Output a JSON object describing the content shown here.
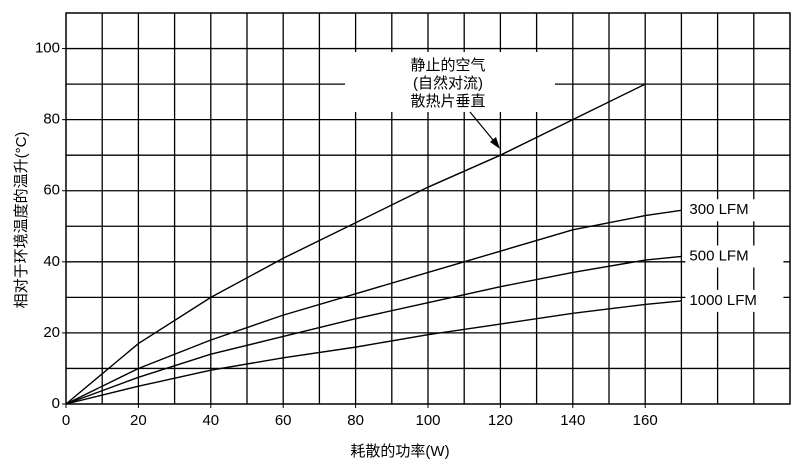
{
  "chart_data": {
    "type": "line",
    "x_label": "耗散的功率(W)",
    "y_label": "相对于环境温度的温升(°C)",
    "x": [
      0,
      20,
      40,
      60,
      80,
      100,
      120,
      140,
      160,
      170
    ],
    "series": [
      {
        "color": "#000000",
        "values": [
          0,
          17,
          30,
          41,
          51,
          61,
          70,
          80,
          90,
          null
        ]
      },
      {
        "name": "300 LFM",
        "color": "#000000",
        "values": [
          0,
          10,
          18,
          25,
          31,
          37,
          43,
          49,
          53,
          54.5
        ]
      },
      {
        "name": "500 LFM",
        "color": "#000000",
        "values": [
          0,
          7.5,
          14,
          19,
          24,
          28.5,
          33,
          37,
          40.5,
          41.5
        ]
      },
      {
        "name": "1000 LFM",
        "color": "#000000",
        "values": [
          0,
          5,
          9.5,
          13,
          16,
          19.5,
          22.5,
          25.5,
          28,
          29
        ]
      }
    ],
    "annotation": [
      "静止的空气",
      "(自然对流)",
      "散热片垂直"
    ],
    "xlim": [
      0,
      200
    ],
    "ylim": [
      0,
      110
    ],
    "xticks": [
      0,
      20,
      40,
      60,
      80,
      100,
      120,
      140,
      160
    ],
    "yticks": [
      0,
      20,
      40,
      60,
      80,
      100
    ],
    "xgrid": [
      10,
      20,
      30,
      40,
      50,
      60,
      70,
      80,
      90,
      100,
      110,
      120,
      130,
      140,
      150,
      160,
      170,
      180,
      190
    ],
    "ygrid": [
      10,
      20,
      30,
      40,
      50,
      60,
      70,
      80,
      90,
      100
    ],
    "grid": true
  }
}
